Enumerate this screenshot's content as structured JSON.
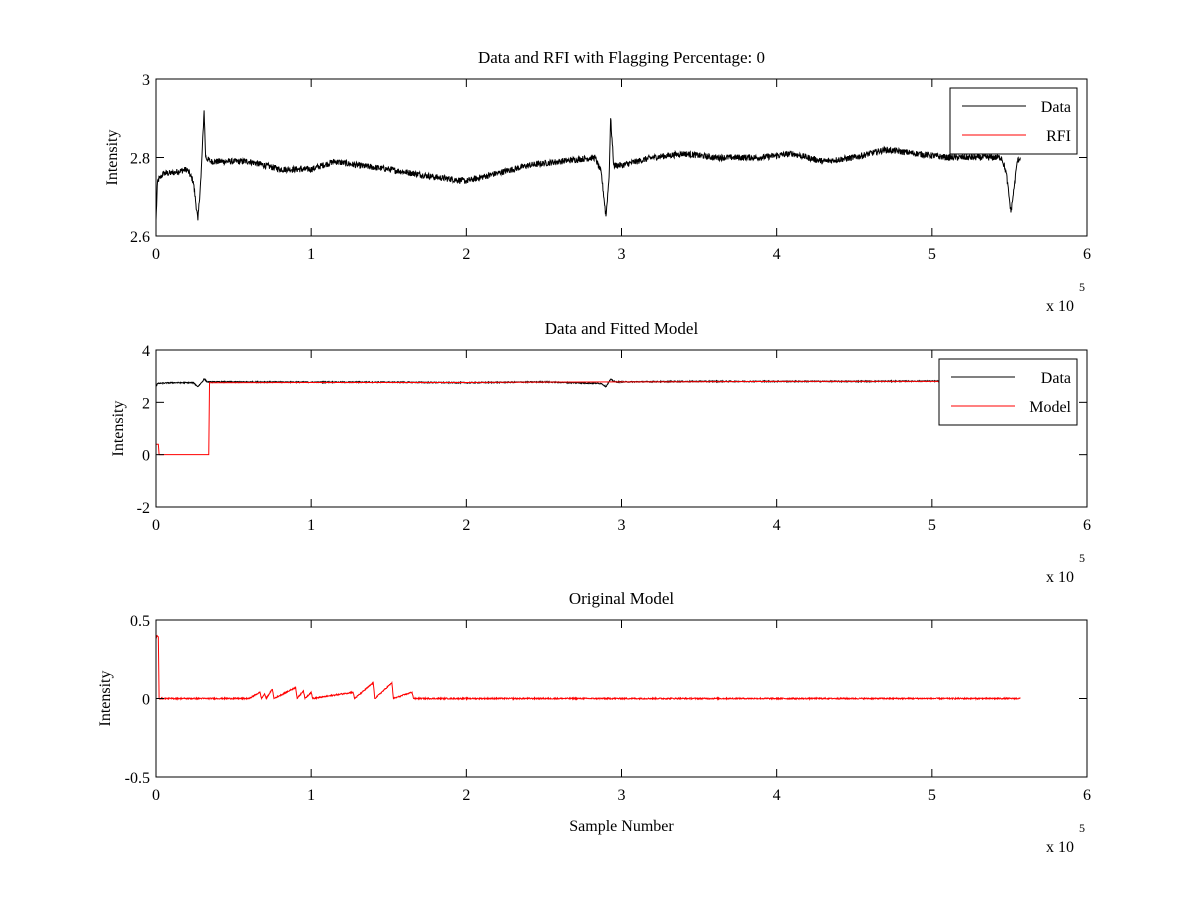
{
  "chart_data": [
    {
      "type": "line",
      "title": "Data and RFI with Flagging Percentage: 0",
      "xlabel": "",
      "ylabel": "Intensity",
      "xlim": [
        0,
        6
      ],
      "ylim": [
        2.6,
        3
      ],
      "x_ticks": [
        0,
        1,
        2,
        3,
        4,
        5,
        6
      ],
      "y_ticks": [
        2.6,
        2.8,
        3
      ],
      "x_ticks_labels": [
        "0",
        "1",
        "2",
        "3",
        "4",
        "5",
        "6"
      ],
      "y_ticks_labels": [
        "2.6",
        "2.8",
        "3"
      ],
      "x_multiplier": "x 10",
      "x_multiplier_exp": "5",
      "grid": false,
      "legend_position": "top-right",
      "series": [
        {
          "name": "Data",
          "color": "#000000",
          "noise": 0.008,
          "points": [
            [
              0,
              2.64
            ],
            [
              0.01,
              2.74
            ],
            [
              0.03,
              2.75
            ],
            [
              0.05,
              2.76
            ],
            [
              0.1,
              2.76
            ],
            [
              0.2,
              2.77
            ],
            [
              0.24,
              2.74
            ],
            [
              0.27,
              2.64
            ],
            [
              0.29,
              2.75
            ],
            [
              0.31,
              2.92
            ],
            [
              0.32,
              2.8
            ],
            [
              0.35,
              2.79
            ],
            [
              0.5,
              2.79
            ],
            [
              0.6,
              2.79
            ],
            [
              0.8,
              2.77
            ],
            [
              1.0,
              2.77
            ],
            [
              1.15,
              2.79
            ],
            [
              1.3,
              2.78
            ],
            [
              1.5,
              2.77
            ],
            [
              1.8,
              2.75
            ],
            [
              2.0,
              2.74
            ],
            [
              2.2,
              2.76
            ],
            [
              2.4,
              2.78
            ],
            [
              2.6,
              2.79
            ],
            [
              2.83,
              2.8
            ],
            [
              2.87,
              2.76
            ],
            [
              2.9,
              2.65
            ],
            [
              2.92,
              2.75
            ],
            [
              2.93,
              2.9
            ],
            [
              2.95,
              2.78
            ],
            [
              3.0,
              2.78
            ],
            [
              3.2,
              2.8
            ],
            [
              3.4,
              2.81
            ],
            [
              3.6,
              2.8
            ],
            [
              3.9,
              2.8
            ],
            [
              4.1,
              2.81
            ],
            [
              4.3,
              2.79
            ],
            [
              4.5,
              2.8
            ],
            [
              4.7,
              2.82
            ],
            [
              4.9,
              2.81
            ],
            [
              5.1,
              2.8
            ],
            [
              5.3,
              2.8
            ],
            [
              5.45,
              2.8
            ],
            [
              5.48,
              2.76
            ],
            [
              5.51,
              2.66
            ],
            [
              5.53,
              2.72
            ],
            [
              5.55,
              2.79
            ],
            [
              5.57,
              2.8
            ]
          ]
        },
        {
          "name": "RFI",
          "color": "#ff0000",
          "noise": 0,
          "points": []
        }
      ]
    },
    {
      "type": "line",
      "title": "Data and Fitted Model",
      "xlabel": "",
      "ylabel": "Intensity",
      "xlim": [
        0,
        6
      ],
      "ylim": [
        -2,
        4
      ],
      "x_ticks": [
        0,
        1,
        2,
        3,
        4,
        5,
        6
      ],
      "y_ticks": [
        -2,
        0,
        2,
        4
      ],
      "x_ticks_labels": [
        "0",
        "1",
        "2",
        "3",
        "4",
        "5",
        "6"
      ],
      "y_ticks_labels": [
        "-2",
        "0",
        "2",
        "4"
      ],
      "x_multiplier": "x 10",
      "x_multiplier_exp": "5",
      "grid": false,
      "legend_position": "top-right",
      "series": [
        {
          "name": "Data",
          "color": "#000000",
          "noise": 0.02,
          "points": [
            [
              0,
              2.6
            ],
            [
              0.01,
              2.72
            ],
            [
              0.1,
              2.75
            ],
            [
              0.24,
              2.75
            ],
            [
              0.27,
              2.6
            ],
            [
              0.3,
              2.8
            ],
            [
              0.31,
              2.9
            ],
            [
              0.33,
              2.78
            ],
            [
              0.5,
              2.78
            ],
            [
              1.0,
              2.77
            ],
            [
              1.5,
              2.77
            ],
            [
              2.0,
              2.75
            ],
            [
              2.5,
              2.78
            ],
            [
              2.87,
              2.72
            ],
            [
              2.9,
              2.6
            ],
            [
              2.93,
              2.88
            ],
            [
              2.96,
              2.78
            ],
            [
              3.5,
              2.8
            ],
            [
              4.0,
              2.8
            ],
            [
              4.5,
              2.8
            ],
            [
              5.0,
              2.81
            ],
            [
              5.48,
              2.78
            ],
            [
              5.51,
              2.7
            ],
            [
              5.54,
              2.8
            ],
            [
              5.57,
              2.8
            ]
          ]
        },
        {
          "name": "Model",
          "color": "#ff0000",
          "noise": 0,
          "points": [
            [
              0,
              0.4
            ],
            [
              0.015,
              0.4
            ],
            [
              0.02,
              0
            ],
            [
              0.34,
              0
            ],
            [
              0.345,
              2.75
            ],
            [
              1.0,
              2.76
            ],
            [
              2.0,
              2.76
            ],
            [
              3.0,
              2.78
            ],
            [
              4.0,
              2.8
            ],
            [
              5.0,
              2.8
            ],
            [
              5.57,
              2.81
            ]
          ]
        }
      ]
    },
    {
      "type": "line",
      "title": "Original Model",
      "xlabel": "Sample Number",
      "ylabel": "Intensity",
      "xlim": [
        0,
        6
      ],
      "ylim": [
        -0.5,
        0.5
      ],
      "x_ticks": [
        0,
        1,
        2,
        3,
        4,
        5,
        6
      ],
      "y_ticks": [
        -0.5,
        0,
        0.5
      ],
      "x_ticks_labels": [
        "0",
        "1",
        "2",
        "3",
        "4",
        "5",
        "6"
      ],
      "y_ticks_labels": [
        "-0.5",
        "0",
        "0.5"
      ],
      "x_multiplier": "x 10",
      "x_multiplier_exp": "5",
      "grid": false,
      "legend_position": "none",
      "series": [
        {
          "name": "",
          "color": "#ff0000",
          "noise": 0.004,
          "points": [
            [
              0,
              0.38
            ],
            [
              0.005,
              0.4
            ],
            [
              0.015,
              0.39
            ],
            [
              0.02,
              0.0
            ],
            [
              0.6,
              0.0
            ],
            [
              0.67,
              0.04
            ],
            [
              0.68,
              0.0
            ],
            [
              0.7,
              0.03
            ],
            [
              0.71,
              0.0
            ],
            [
              0.75,
              0.06
            ],
            [
              0.76,
              0.0
            ],
            [
              0.9,
              0.07
            ],
            [
              0.91,
              0.0
            ],
            [
              0.95,
              0.05
            ],
            [
              0.96,
              0.0
            ],
            [
              1.0,
              0.04
            ],
            [
              1.01,
              0.0
            ],
            [
              1.27,
              0.04
            ],
            [
              1.28,
              0.0
            ],
            [
              1.4,
              0.1
            ],
            [
              1.41,
              0.0
            ],
            [
              1.52,
              0.1
            ],
            [
              1.53,
              0.0
            ],
            [
              1.65,
              0.04
            ],
            [
              1.66,
              0.0
            ],
            [
              5.57,
              0.0
            ]
          ]
        }
      ]
    }
  ]
}
